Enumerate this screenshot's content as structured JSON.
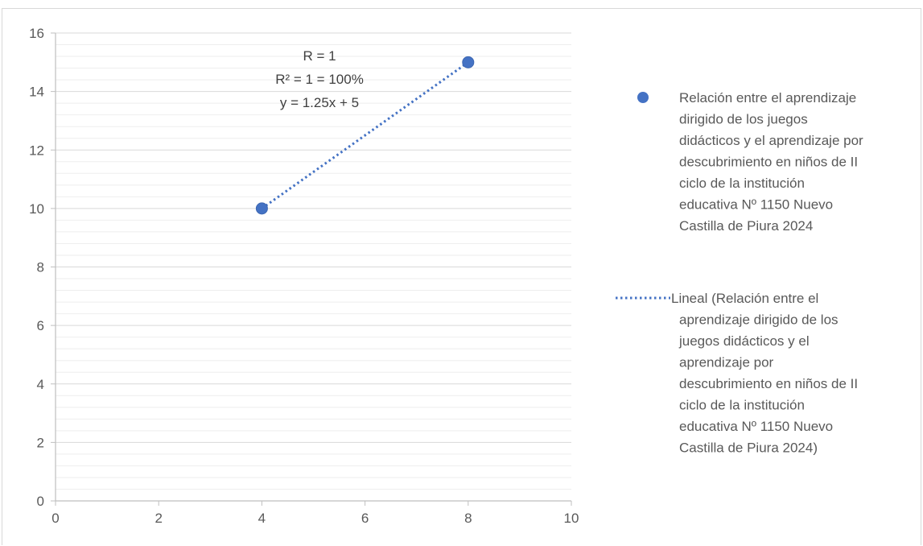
{
  "chart_data": {
    "type": "scatter",
    "xlim": [
      0,
      10
    ],
    "ylim": [
      0,
      16
    ],
    "x_ticks": [
      "0",
      "2",
      "4",
      "6",
      "8",
      "10"
    ],
    "y_ticks": [
      "0",
      "2",
      "4",
      "6",
      "8",
      "10",
      "12",
      "14",
      "16"
    ],
    "grid": true,
    "legend_position": "right",
    "series": [
      {
        "name": "Relación entre el aprendizaje dirigido de los juegos didácticos y el aprendizaje por descubrimiento en niños de II ciclo de la institución educativa Nº 1150 Nuevo Castilla de Piura 2024",
        "kind": "scatter",
        "x": [
          4,
          8
        ],
        "y": [
          10,
          15
        ],
        "color": "#4472C4"
      },
      {
        "name": "Lineal (Relación entre el aprendizaje dirigido de los juegos didácticos y el aprendizaje por descubrimiento en niños de II ciclo de la institución educativa Nº 1150 Nuevo Castilla de Piura 2024)",
        "kind": "trendline",
        "x": [
          4,
          8
        ],
        "y": [
          10,
          15
        ],
        "color": "#4472C4"
      }
    ],
    "annotations": [
      "R = 1",
      "R² = 1 = 100%",
      "y = 1.25x + 5"
    ],
    "legend_lines": {
      "series1": [
        "Relación entre el aprendizaje",
        "dirigido de los juegos",
        "didácticos y el aprendizaje por",
        "descubrimiento en niños de II",
        "ciclo de la institución",
        "educativa Nº 1150 Nuevo",
        "Castilla de Piura 2024"
      ],
      "series2": [
        "Lineal (Relación entre el",
        "aprendizaje dirigido de los",
        "juegos didácticos y el",
        "aprendizaje por",
        "descubrimiento en niños de II",
        "ciclo de la institución",
        "educativa Nº 1150 Nuevo",
        "Castilla de Piura 2024)"
      ]
    }
  }
}
